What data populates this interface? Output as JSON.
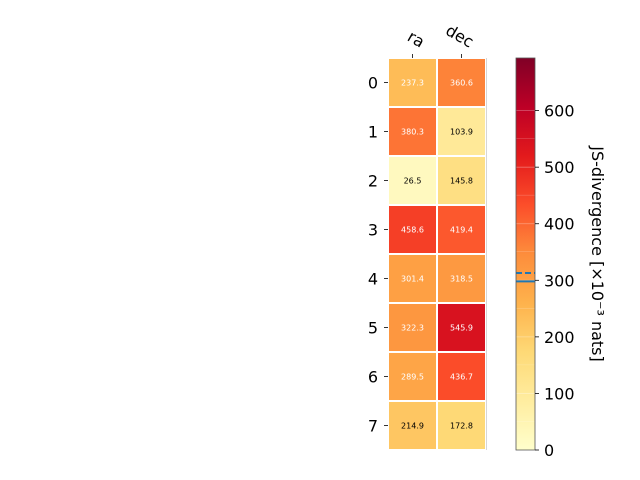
{
  "chart_data": {
    "type": "heatmap",
    "columns": [
      "ra",
      "dec"
    ],
    "rows": [
      "0",
      "1",
      "2",
      "3",
      "4",
      "5",
      "6",
      "7"
    ],
    "values": [
      [
        237.3,
        360.6
      ],
      [
        380.3,
        103.9
      ],
      [
        26.5,
        145.8
      ],
      [
        458.6,
        419.4
      ],
      [
        301.4,
        318.5
      ],
      [
        322.3,
        545.9
      ],
      [
        289.5,
        436.7
      ],
      [
        214.9,
        172.8
      ]
    ],
    "value_labels": [
      [
        "237.3",
        "360.6"
      ],
      [
        "380.3",
        "103.9"
      ],
      [
        "26.5",
        "145.8"
      ],
      [
        "458.6",
        "419.4"
      ],
      [
        "301.4",
        "318.5"
      ],
      [
        "322.3",
        "545.9"
      ],
      [
        "289.5",
        "436.7"
      ],
      [
        "214.9",
        "172.8"
      ]
    ],
    "colorbar": {
      "label": "JS-divergence [×10⁻³ nats]",
      "range": [
        0,
        693
      ],
      "ticks": [
        "0",
        "100",
        "200",
        "300",
        "400",
        "500",
        "600"
      ],
      "tick_values": [
        0,
        100,
        200,
        300,
        400,
        500,
        600
      ],
      "colormap": "YlOrRd",
      "markers": [
        {
          "value": 298,
          "style": "solid",
          "color": "#1f77b4"
        },
        {
          "value": 313,
          "style": "dashed",
          "color": "#1f77b4"
        }
      ]
    },
    "grid": false,
    "legend": "none"
  }
}
